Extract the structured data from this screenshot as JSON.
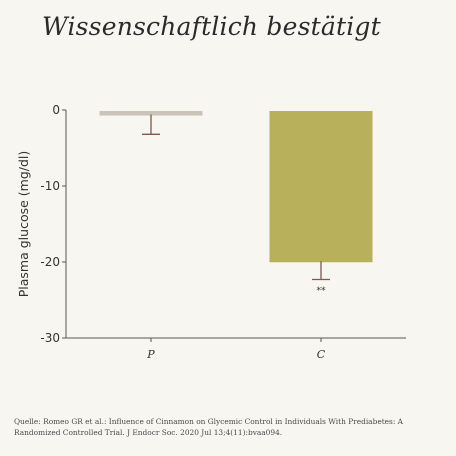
{
  "title": "Wissenschaftlich bestätigt",
  "chart_data": {
    "type": "bar",
    "categories": [
      "P",
      "C"
    ],
    "values": [
      -0.6,
      -19.9
    ],
    "error_bars": [
      [
        -3.2,
        0
      ],
      [
        -22.3,
        0
      ]
    ],
    "annotations": [
      "",
      "**"
    ],
    "ylabel": "Plasma glucose (mg/dl)",
    "xlabel": "",
    "ylim": [
      -30,
      0
    ],
    "yticks": [
      0,
      -10,
      -20,
      -30
    ],
    "grid": false,
    "legend": "none",
    "colors": {
      "P": "#c9c3b9",
      "C": "#b8b05b",
      "error_bar": "#7a5a4a",
      "axis": "#555555"
    }
  },
  "source": "Quelle: Romeo GR et al.: Influence of Cinnamon on Glycemic Control in Individuals With Prediabetes: A Randomized Controlled Trial. J Endocr Soc. 2020 Jul 13;4(11):bvaa094."
}
